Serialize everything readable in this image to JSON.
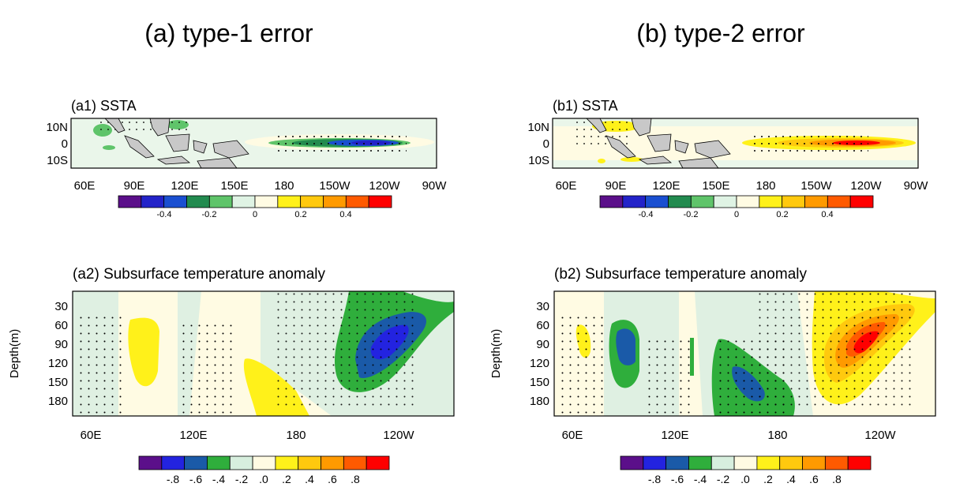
{
  "figure": {
    "column_titles": [
      "(a) type-1 error",
      "(b) type-2 error"
    ]
  },
  "colors": {
    "ssta_colorbar": [
      "#5b0f8a",
      "#2323c9",
      "#1a4fd1",
      "#228b4f",
      "#5fc46a",
      "#dff3e4",
      "#fffbe3",
      "#fff11a",
      "#ffc90e",
      "#ff9a00",
      "#ff5a00",
      "#ff0000"
    ],
    "subsurface_colorbar": [
      "#5b0f8a",
      "#2323e0",
      "#1a5aa8",
      "#2fae3c",
      "#d7efde",
      "#fffbe3",
      "#fff11a",
      "#ffc90e",
      "#ff9a00",
      "#ff5a00",
      "#ff0000"
    ],
    "land": "#c8c8c8"
  },
  "chart_data": [
    {
      "id": "a1",
      "type": "heatmap",
      "title": "(a1) SSTA",
      "xlabel": "",
      "ylabel": "",
      "x_ticks": [
        "60E",
        "90E",
        "120E",
        "150E",
        "180",
        "150W",
        "120W",
        "90W"
      ],
      "y_ticks": [
        "10N",
        "0",
        "10S"
      ],
      "colorbar_ticks": [
        "-0.4",
        "-0.2",
        "0",
        "0.2",
        "0.4"
      ],
      "features": [
        {
          "kind": "negative_core",
          "lon": [
            175,
            285
          ],
          "lat": [
            -3,
            3
          ],
          "peak": -0.5,
          "lon_peak": 240
        },
        {
          "kind": "weak_negative",
          "lon": [
            60,
            75
          ],
          "lat": [
            -2,
            6
          ]
        },
        {
          "kind": "weak_negative",
          "lon": [
            95,
            110
          ],
          "lat": [
            10,
            14
          ]
        }
      ],
      "stippling": "significant regions dotted"
    },
    {
      "id": "b1",
      "type": "heatmap",
      "title": "(b1) SSTA",
      "xlabel": "",
      "ylabel": "",
      "x_ticks": [
        "60E",
        "90E",
        "120E",
        "150E",
        "180",
        "150W",
        "120W",
        "90W"
      ],
      "y_ticks": [
        "10N",
        "0",
        "10S"
      ],
      "colorbar_ticks": [
        "-0.4",
        "-0.2",
        "0",
        "0.2",
        "0.4"
      ],
      "features": [
        {
          "kind": "positive_core",
          "lon": [
            165,
            290
          ],
          "lat": [
            -3,
            3
          ],
          "peak": 0.5,
          "lon_peak": 240
        },
        {
          "kind": "weak_positive",
          "lon": [
            75,
            100
          ],
          "lat": [
            8,
            13
          ]
        },
        {
          "kind": "weak_positive",
          "lon": [
            85,
            95
          ],
          "lat": [
            -11,
            -8
          ]
        }
      ],
      "stippling": "significant regions dotted"
    },
    {
      "id": "a2",
      "type": "heatmap",
      "title": "(a2) Subsurface temperature anomaly",
      "xlabel": "",
      "ylabel": "Depth(m)",
      "x_ticks": [
        "60E",
        "120E",
        "180",
        "120W"
      ],
      "y_ticks": [
        "30",
        "60",
        "90",
        "120",
        "150",
        "180"
      ],
      "colorbar_ticks": [
        "-.8",
        "-.6",
        "-.4",
        "-.2",
        ".0",
        ".2",
        ".4",
        ".6",
        ".8"
      ],
      "features": [
        {
          "kind": "cold_core",
          "lon": [
            205,
            285
          ],
          "depth": [
            10,
            180
          ],
          "peak": -0.7,
          "lon_peak": 240,
          "depth_peak": 90
        },
        {
          "kind": "warm",
          "lon": [
            85,
            100
          ],
          "depth": [
            50,
            170
          ],
          "peak": 0.25
        },
        {
          "kind": "warm",
          "lon": [
            155,
            190
          ],
          "depth": [
            120,
            200
          ],
          "peak": 0.25
        }
      ],
      "stippling": "significant regions dotted"
    },
    {
      "id": "b2",
      "type": "heatmap",
      "title": "(b2) Subsurface temperature anomaly",
      "xlabel": "",
      "ylabel": "Depth(m)",
      "x_ticks": [
        "60E",
        "120E",
        "180",
        "120W"
      ],
      "y_ticks": [
        "30",
        "60",
        "90",
        "120",
        "150",
        "180"
      ],
      "colorbar_ticks": [
        "-.8",
        "-.6",
        "-.4",
        "-.2",
        ".0",
        ".2",
        ".4",
        ".6",
        ".8"
      ],
      "features": [
        {
          "kind": "warm_core",
          "lon": [
            200,
            285
          ],
          "depth": [
            10,
            185
          ],
          "peak": 0.85,
          "lon_peak": 240,
          "depth_peak": 90
        },
        {
          "kind": "cold_core",
          "lon": [
            150,
            185
          ],
          "depth": [
            110,
            200
          ],
          "peak": -0.65
        },
        {
          "kind": "cold",
          "lon": [
            88,
            102
          ],
          "depth": [
            50,
            170
          ],
          "peak": -0.6
        },
        {
          "kind": "cold",
          "lon": [
            130,
            133
          ],
          "depth": [
            80,
            140
          ],
          "peak": -0.4
        },
        {
          "kind": "warm",
          "lon": [
            68,
            78
          ],
          "depth": [
            60,
            110
          ],
          "peak": 0.25
        }
      ],
      "stippling": "significant regions dotted"
    }
  ]
}
